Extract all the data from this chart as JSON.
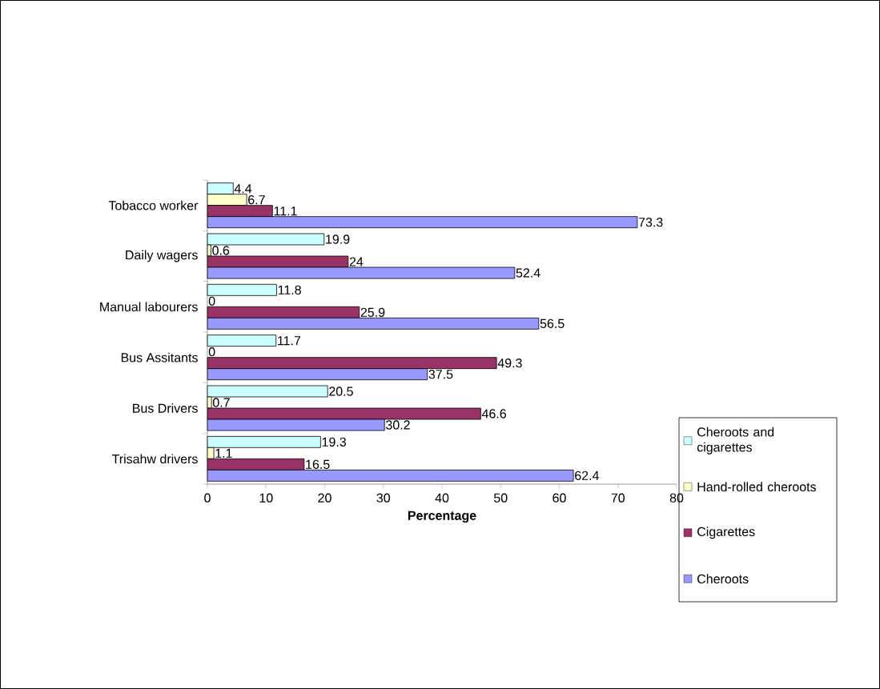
{
  "chart_data": {
    "type": "bar",
    "orientation": "horizontal",
    "xlabel": "Percentage",
    "categories": [
      "Tobacco worker",
      "Daily wagers",
      "Manual labourers",
      "Bus Assitants",
      "Bus Drivers",
      "Trisahw drivers"
    ],
    "series": [
      {
        "name": "Cheroots and cigarettes",
        "color": "#ccffff",
        "values": [
          4.4,
          19.9,
          11.8,
          11.7,
          20.5,
          19.3
        ]
      },
      {
        "name": "Hand-rolled cheroots",
        "color": "#ffffcc",
        "values": [
          6.7,
          0.6,
          0,
          0,
          0.7,
          1.1
        ]
      },
      {
        "name": "Cigarettes",
        "color": "#993366",
        "values": [
          11.1,
          24,
          25.9,
          49.3,
          46.6,
          16.5
        ]
      },
      {
        "name": "Cheroots",
        "color": "#9999ff",
        "values": [
          73.3,
          52.4,
          56.5,
          37.5,
          30.2,
          62.4
        ]
      }
    ],
    "xlim": [
      0,
      80
    ],
    "xticks": [
      0,
      10,
      20,
      30,
      40,
      50,
      60,
      70,
      80
    ],
    "data_labels": true,
    "legend": "right"
  }
}
